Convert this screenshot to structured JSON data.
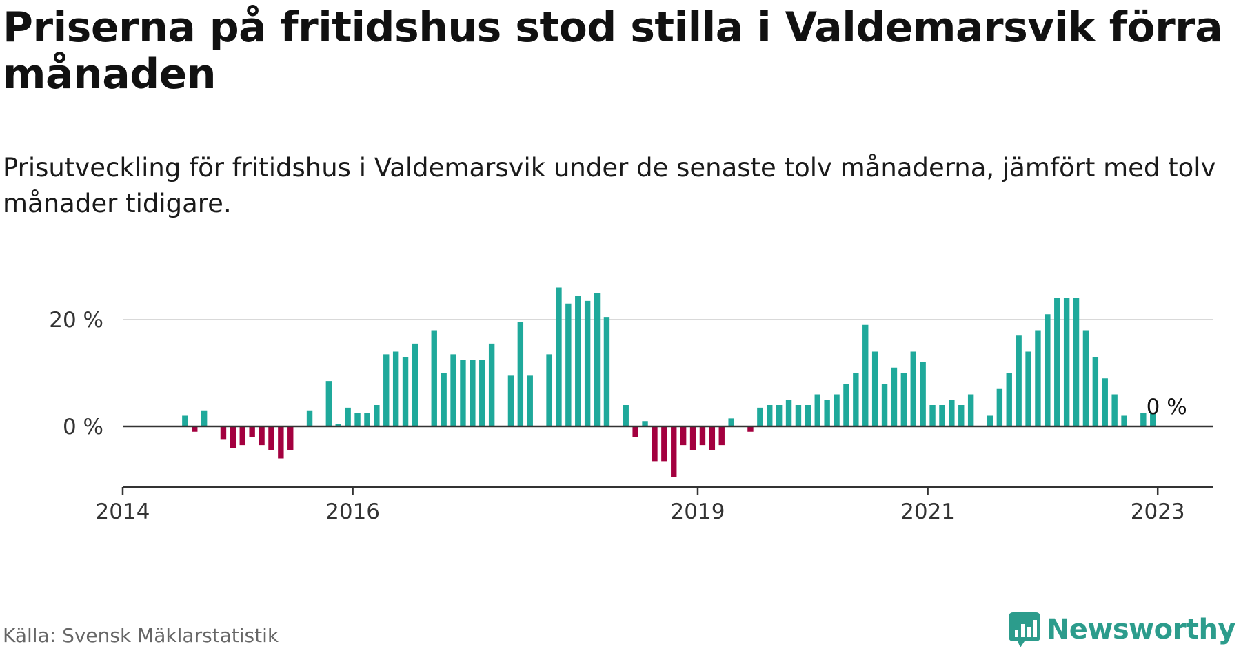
{
  "title": "Priserna på fritidshus stod stilla i Valdemarsvik förra månaden",
  "subtitle": "Prisutveckling för fritidshus i Valdemarsvik under de senaste tolv månaderna, jämfört med tolv månader tidigare.",
  "source": "Källa: Svensk Mäklarstatistik",
  "brand": "Newsworthy",
  "colors": {
    "positive": "#1fa99b",
    "negative": "#a3003f",
    "axis": "#333333",
    "grid": "#d9d9d9",
    "brand": "#2c9c8c"
  },
  "chart_data": {
    "type": "bar",
    "start_month": "2014-01",
    "frequency": "monthly",
    "value_unit": "%",
    "xticks": [
      "2014",
      "2016",
      "2019",
      "2021",
      "2023"
    ],
    "yticks": [
      {
        "value": 0,
        "label": "0 %"
      },
      {
        "value": 20,
        "label": "20 %"
      }
    ],
    "ylim": [
      -11,
      30
    ],
    "grid": true,
    "last_label": "0 %",
    "values": [
      null,
      null,
      null,
      null,
      null,
      null,
      2,
      -1,
      3,
      null,
      -2.5,
      -4,
      -3.5,
      -2,
      -3.5,
      -4.5,
      -6,
      -4.5,
      null,
      3,
      null,
      8.5,
      0.5,
      3.5,
      2.5,
      2.5,
      4,
      13.5,
      14,
      13,
      15.5,
      null,
      18,
      10,
      13.5,
      12.5,
      12.5,
      12.5,
      15.5,
      null,
      9.5,
      19.5,
      9.5,
      null,
      13.5,
      26,
      23,
      24.5,
      23.5,
      25,
      20.5,
      null,
      4,
      -2,
      1,
      -6.5,
      -6.5,
      -9.5,
      -3.5,
      -4.5,
      -3.5,
      -4.5,
      -3.5,
      1.5,
      null,
      -1,
      3.5,
      4,
      4,
      5,
      4,
      4,
      6,
      5,
      6,
      8,
      10,
      19,
      14,
      8,
      11,
      10,
      14,
      12,
      4,
      4,
      5,
      4,
      6,
      null,
      2,
      7,
      10,
      17,
      14,
      18,
      21,
      24,
      24,
      24,
      18,
      13,
      9,
      6,
      2,
      null,
      2.5,
      2.5,
      0
    ]
  }
}
